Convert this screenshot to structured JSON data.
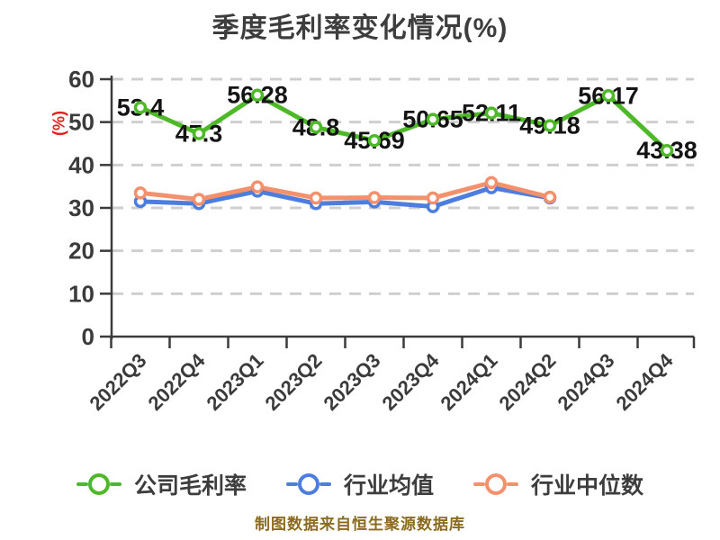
{
  "footer": "制图数据来自恒生聚源数据库",
  "colors": {
    "company_green": "#4DB928",
    "industry_avg_blue": "#4D7EDD",
    "industry_median_orange": "#F4906B",
    "axis": "#3b3b3b",
    "grid": "#cfcfcf",
    "title_text": "#3d3d3d",
    "y_unit_red": "#e02222",
    "footer_gold": "#8b6b1f",
    "data_label": "#141414",
    "marker_fill": "#ffffff"
  },
  "chart_data": {
    "type": "line",
    "title": "季度毛利率变化情况(%)",
    "ylabel": "(%)",
    "categories": [
      "2022Q3",
      "2022Q4",
      "2023Q1",
      "2023Q2",
      "2023Q3",
      "2023Q4",
      "2024Q1",
      "2024Q2",
      "2024Q3",
      "2024Q4"
    ],
    "yticks": [
      0,
      10,
      20,
      30,
      40,
      50,
      60
    ],
    "ylim": [
      0,
      60
    ],
    "grid": "horizontal-dashed",
    "legend_position": "bottom",
    "series": [
      {
        "name": "公司毛利率",
        "color": "#4DB928",
        "show_labels": true,
        "values": [
          53.4,
          47.3,
          56.28,
          48.8,
          45.69,
          50.65,
          52.11,
          49.18,
          56.17,
          43.38
        ],
        "labels": [
          "53.4",
          "47.3",
          "56.28",
          "48.8",
          "45.69",
          "50.65",
          "52.11",
          "49.18",
          "56.17",
          "43.38"
        ]
      },
      {
        "name": "行业均值",
        "color": "#4D7EDD",
        "show_labels": false,
        "values": [
          31.5,
          31.0,
          33.9,
          31.0,
          31.4,
          30.3,
          34.7,
          32.3
        ],
        "labels": []
      },
      {
        "name": "行业中位数",
        "color": "#F4906B",
        "show_labels": false,
        "values": [
          33.5,
          32.0,
          34.9,
          32.3,
          32.4,
          32.3,
          35.9,
          32.5
        ],
        "labels": []
      }
    ]
  }
}
